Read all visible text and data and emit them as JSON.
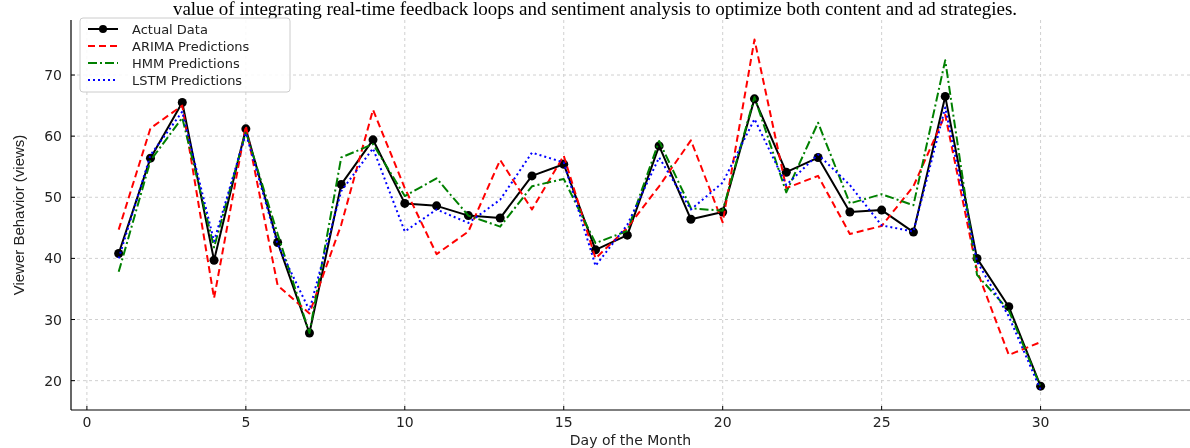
{
  "chart_data": {
    "type": "line",
    "title": "value of integrating real-time feedback loops and sentiment analysis to optimize both content and ad strategies.",
    "xlabel": "Day of the Month",
    "ylabel": "Viewer Behavior (views)",
    "x": [
      1,
      2,
      3,
      4,
      5,
      6,
      7,
      8,
      9,
      10,
      11,
      12,
      13,
      14,
      15,
      16,
      17,
      18,
      19,
      20,
      21,
      22,
      23,
      24,
      25,
      26,
      27,
      28,
      29,
      30
    ],
    "xlim": [
      -0.5,
      34.7
    ],
    "xticks": [
      0,
      5,
      10,
      15,
      20,
      25,
      30
    ],
    "ylim": [
      15.2,
      79
    ],
    "yticks": [
      20,
      30,
      40,
      50,
      60,
      70
    ],
    "grid": true,
    "legend": "top left",
    "series": [
      {
        "name": "Actual Data",
        "color": "#000000",
        "line_style": "solid",
        "marker": "circle",
        "values": [
          40.8,
          56.4,
          65.5,
          39.7,
          61.2,
          42.6,
          27.8,
          52.1,
          59.4,
          49,
          48.6,
          47,
          46.6,
          53.5,
          55.4,
          41.4,
          43.8,
          58.4,
          46.4,
          47.6,
          66.1,
          54.1,
          56.5,
          47.6,
          47.9,
          44.3,
          66.5,
          40,
          32.1,
          19.1
        ]
      },
      {
        "name": "ARIMA Predictions",
        "color": "#ff0000",
        "line_style": "dashed",
        "marker": "none",
        "values": [
          44.7,
          61.3,
          65,
          33.5,
          61.7,
          35.6,
          31,
          45.5,
          64.3,
          51.5,
          40.7,
          44.4,
          56.1,
          48,
          56.8,
          40,
          45,
          51.8,
          59.3,
          45.9,
          75.8,
          51.5,
          53.5,
          44,
          45.3,
          51.8,
          63.5,
          38,
          24.2,
          26.3
        ]
      },
      {
        "name": "HMM Predictions",
        "color": "#008000",
        "line_style": "dashdot",
        "marker": "none",
        "values": [
          37.8,
          56,
          63,
          41.8,
          60.7,
          44,
          27.8,
          56.5,
          58.7,
          50.2,
          53.1,
          47,
          45.2,
          51.8,
          53,
          42.5,
          44.5,
          59.2,
          48.2,
          47.8,
          66.4,
          50.8,
          62.2,
          49,
          50.5,
          48.7,
          72.4,
          37.3,
          31.5,
          19
        ]
      },
      {
        "name": "LSTM Predictions",
        "color": "#0000ff",
        "line_style": "dotted",
        "marker": "none",
        "values": [
          40,
          56.9,
          64,
          42.8,
          60.5,
          42.3,
          31.5,
          51,
          58,
          44.4,
          48,
          45.8,
          49.6,
          57.3,
          55.7,
          38.8,
          45.5,
          56.5,
          48,
          52.4,
          62.8,
          52,
          57,
          52,
          45.4,
          44.4,
          64.7,
          39.5,
          30.5,
          18.5
        ]
      }
    ]
  }
}
